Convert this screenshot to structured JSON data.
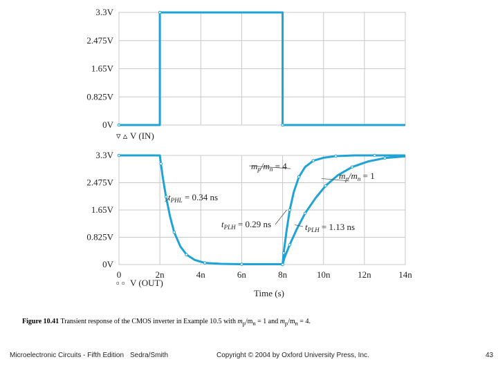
{
  "chart_data": [
    {
      "type": "line",
      "title": "",
      "xlabel": "",
      "ylabel": "",
      "xlim": [
        0,
        14
      ],
      "ylim": [
        0,
        3.3
      ],
      "grid": true,
      "y_ticks": [
        "3.3V",
        "2.475V",
        "1.65V",
        "0.825V",
        "0V"
      ],
      "y_tick_values": [
        3.3,
        2.475,
        1.65,
        0.825,
        0
      ],
      "legend": {
        "placement": "bottom-left",
        "markers": "▿ ▵",
        "label": "V (IN)"
      },
      "series": [
        {
          "name": "V (IN)",
          "color": "#1ea3d6",
          "x": [
            0,
            2,
            2,
            8,
            8,
            14
          ],
          "y": [
            0,
            0,
            3.3,
            3.3,
            0,
            0
          ]
        }
      ]
    },
    {
      "type": "line",
      "title": "",
      "xlabel": "Time (s)",
      "ylabel": "",
      "xlim": [
        0,
        14
      ],
      "ylim": [
        0,
        3.3
      ],
      "grid": true,
      "y_ticks": [
        "3.3V",
        "2.475V",
        "1.65V",
        "0.825V",
        "0V"
      ],
      "y_tick_values": [
        3.3,
        2.475,
        1.65,
        0.825,
        0
      ],
      "x_ticks": [
        "0",
        "2n",
        "4n",
        "6n",
        "8n",
        "10n",
        "12n",
        "14n"
      ],
      "x_tick_values": [
        0,
        2,
        4,
        6,
        8,
        10,
        12,
        14
      ],
      "legend": {
        "placement": "bottom-left",
        "markers": "▫ ▫",
        "label": "V (OUT)"
      },
      "annotations": [
        {
          "id": "ratio4",
          "parts": [
            "m",
            "p",
            "/m",
            "n",
            " = 4"
          ]
        },
        {
          "id": "ratio1",
          "parts": [
            "m",
            "p",
            "/m",
            "n",
            " = 1"
          ]
        },
        {
          "id": "tphl",
          "parts": [
            "t",
            "PHL",
            " = 0.34 ns"
          ]
        },
        {
          "id": "tplh4",
          "parts": [
            "t",
            "PLH",
            " = 0.29 ns"
          ]
        },
        {
          "id": "tplh1",
          "parts": [
            "t",
            "PLH",
            " = 1.13 ns"
          ]
        }
      ],
      "series": [
        {
          "name": "",
          "color": "#1ea3d6",
          "x": [
            0,
            2,
            2.05,
            2.15,
            2.3,
            2.5,
            2.7,
            3.0,
            3.3,
            3.7,
            4.2,
            5,
            6,
            8,
            8.05,
            8.2,
            8.35,
            8.55,
            8.8,
            9.1,
            9.5,
            10,
            10.6,
            11.5,
            12.5,
            14
          ],
          "y": [
            3.3,
            3.3,
            3.05,
            2.6,
            2.05,
            1.45,
            0.98,
            0.55,
            0.3,
            0.14,
            0.05,
            0.02,
            0.01,
            0.01,
            0.35,
            1.05,
            1.65,
            2.2,
            2.65,
            2.95,
            3.14,
            3.23,
            3.28,
            3.3,
            3.3,
            3.3
          ]
        },
        {
          "name": "",
          "color": "#1ea3d6",
          "x": [
            8,
            8.1,
            8.35,
            8.7,
            9.1,
            9.6,
            10.1,
            10.7,
            11.4,
            12.2,
            13,
            14
          ],
          "y": [
            0,
            0.22,
            0.6,
            1.08,
            1.55,
            2.0,
            2.38,
            2.7,
            2.95,
            3.12,
            3.22,
            3.27
          ]
        }
      ]
    }
  ],
  "caption": {
    "figure": "Figure 10.41",
    "text_before": "  Transient response of the CMOS inverter in Example 10.5 with ",
    "mp": "m",
    "p": "p",
    "slash": "/m",
    "n": "n",
    "between": " = 1 and ",
    "mp2": "m",
    "p2": "p",
    "slash2": "/m",
    "n2": "n",
    "end": " = 4."
  },
  "footer": {
    "book": "Microelectronic Circuits - Fifth Edition",
    "authors": "Sedra/Smith",
    "copyright": "Copyright © 2004 by Oxford University Press, Inc.",
    "page": "43"
  }
}
